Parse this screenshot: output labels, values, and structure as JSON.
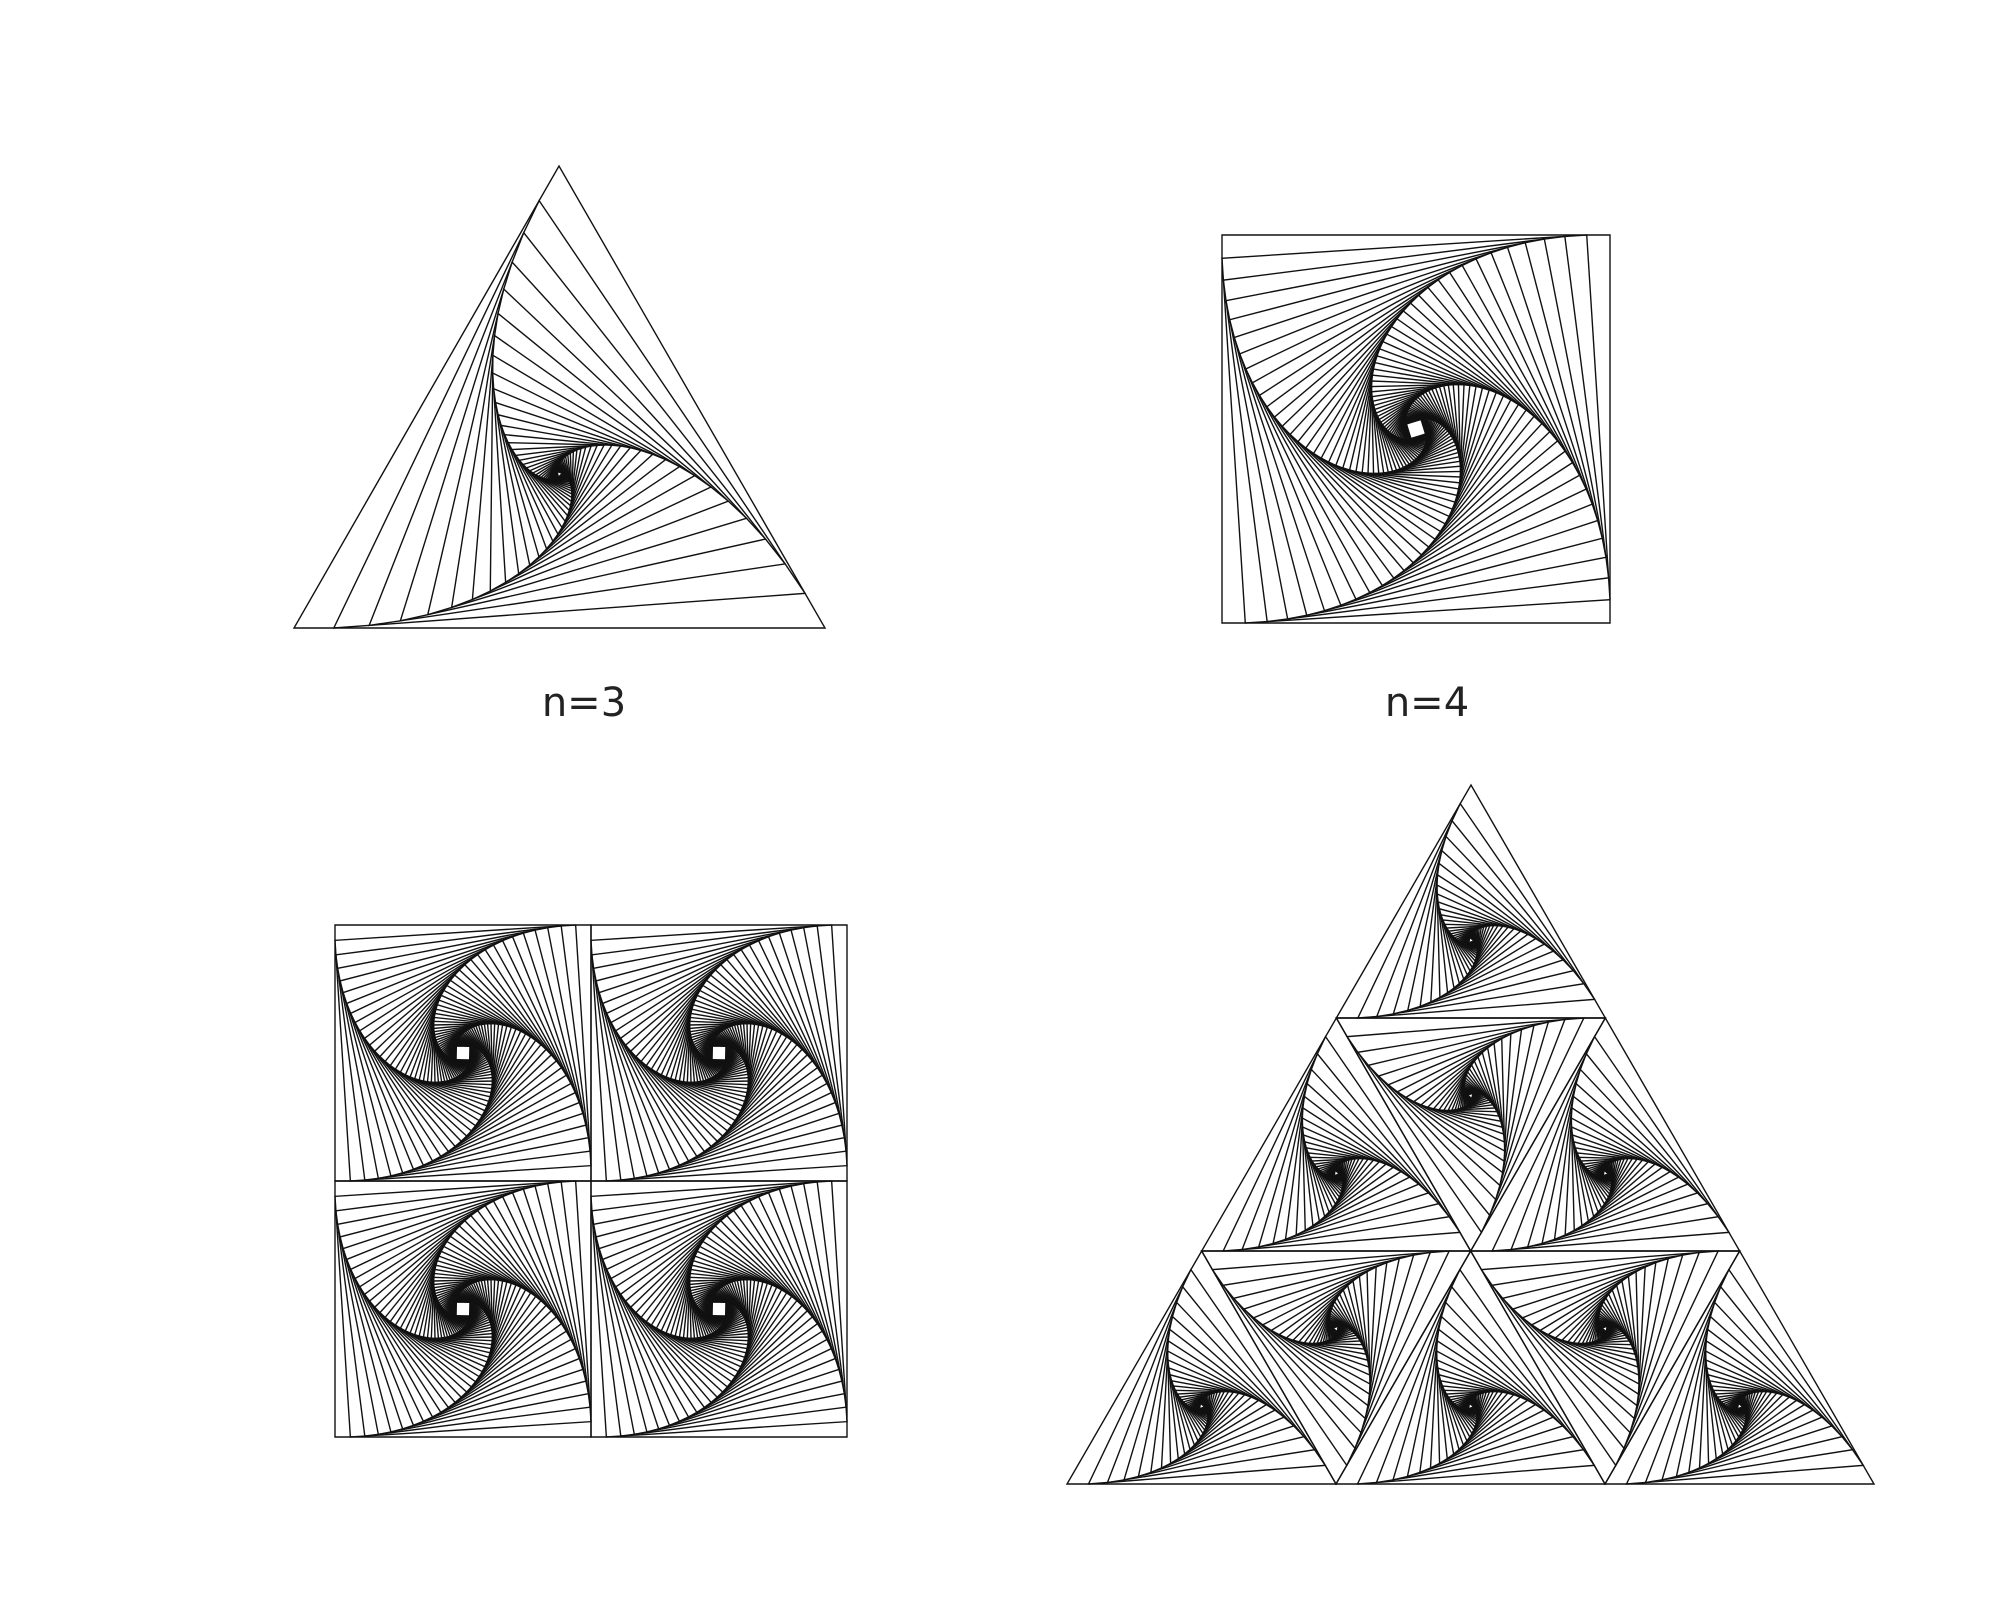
{
  "labels": [
    "n=3",
    "n=4"
  ]
}
